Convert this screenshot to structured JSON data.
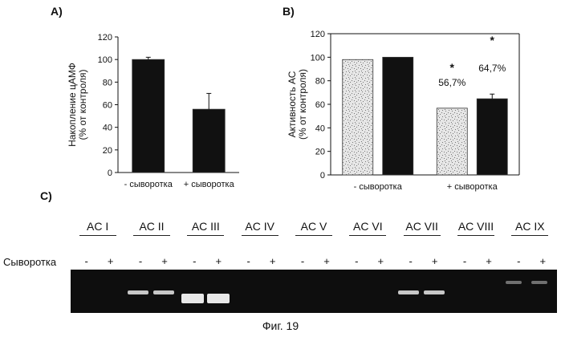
{
  "figure_caption": "Фиг. 19",
  "panels": {
    "a": "A)",
    "b": "B)",
    "c": "C)"
  },
  "chart_data": [
    {
      "type": "bar",
      "panel": "A)",
      "ylabel": "Накопление цАМФ\n(% от контроля)",
      "ylim": [
        0,
        120
      ],
      "yticks": [
        0,
        20,
        40,
        60,
        80,
        100,
        120
      ],
      "categories": [
        "- сыворотка",
        "+ сыворотка"
      ],
      "series": [
        {
          "values": [
            100,
            56
          ],
          "errors": [
            2,
            14
          ],
          "color": "#111111"
        }
      ],
      "grid": false
    },
    {
      "type": "bar",
      "panel": "B)",
      "ylabel": "Активность АС\n(% от контроля)",
      "ylim": [
        0,
        120
      ],
      "yticks": [
        0,
        20,
        40,
        60,
        80,
        100,
        120
      ],
      "categories": [
        "- сыворотка",
        "+ сыворотка"
      ],
      "series": [
        {
          "values": [
            98,
            56.7
          ],
          "errors": [
            0,
            0
          ],
          "color": "speckled-light"
        },
        {
          "values": [
            100,
            64.7
          ],
          "errors": [
            0,
            4
          ],
          "color": "#111111"
        }
      ],
      "annotations": [
        {
          "category": 1,
          "series": 0,
          "percent_label": "56,7%",
          "star": "*"
        },
        {
          "category": 1,
          "series": 1,
          "percent_label": "64,7%",
          "star": "*"
        }
      ],
      "grid": false
    }
  ],
  "gel": {
    "row_label": "Сыворотка",
    "minus": "-",
    "plus": "+",
    "lanes": [
      {
        "label": "AC I"
      },
      {
        "label": "AC II",
        "bands": "medium"
      },
      {
        "label": "AC III",
        "bands": "strong"
      },
      {
        "label": "AC IV"
      },
      {
        "label": "AC V"
      },
      {
        "label": "AC VI"
      },
      {
        "label": "AC VII",
        "bands": "medium"
      },
      {
        "label": "AC VIII"
      },
      {
        "label": "AC IX",
        "bands": "faint"
      }
    ]
  }
}
